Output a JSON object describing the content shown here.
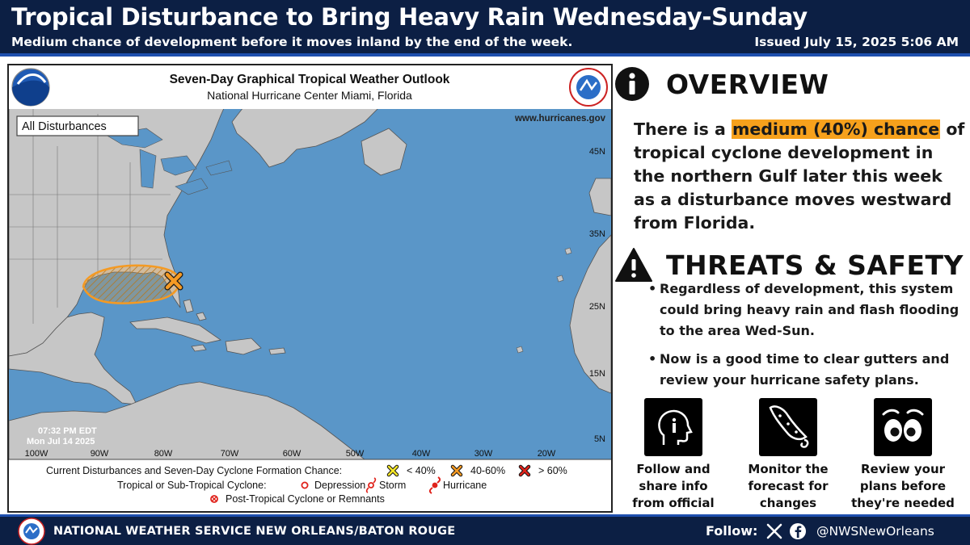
{
  "header": {
    "title": "Tropical Disturbance to Bring Heavy Rain Wednesday-Sunday",
    "subtitle": "Medium chance of development before it moves inland by the end of the week.",
    "issued": "Issued July 15, 2025 5:06 AM"
  },
  "map": {
    "title": "Seven-Day Graphical Tropical Weather Outlook",
    "subtitle": "National Hurricane Center  Miami, Florida",
    "website": "www.hurricanes.gov",
    "filter_label": "All Disturbances",
    "timestamp_time": "07:32 PM EDT",
    "timestamp_date": "Mon Jul 14 2025",
    "lat_labels": [
      "45N",
      "35N",
      "25N",
      "15N",
      "5N"
    ],
    "lon_labels": [
      "100W",
      "90W",
      "80W",
      "70W",
      "60W",
      "50W",
      "40W",
      "30W",
      "20W"
    ],
    "legend": {
      "row1_label": "Current Disturbances and Seven-Day Cyclone Formation Chance:",
      "low": "< 40%",
      "medium": "40-60%",
      "high": "> 60%",
      "row2_label": "Tropical or Sub-Tropical Cyclone:",
      "depression": "Depression",
      "storm": "Storm",
      "hurricane": "Hurricane",
      "post_tropical": "Post-Tropical Cyclone or Remnants"
    },
    "colors": {
      "ocean": "#5a96c8",
      "land": "#c6c6c6",
      "low": "#f5e627",
      "medium": "#f59a23",
      "high": "#e0221b"
    }
  },
  "overview": {
    "heading": "OVERVIEW",
    "text_before": "There is a ",
    "highlight": "medium (40%) chance",
    "text_after": " of tropical cyclone development in the northern Gulf later this week as a disturbance moves westward from Florida."
  },
  "threats": {
    "heading": "THREATS & SAFETY",
    "bullets": [
      "Regardless of development, this system could bring heavy rain and flash flooding to the area Wed-Sun.",
      "Now is a good time to clear gutters and review your hurricane safety plans."
    ]
  },
  "tiles": [
    {
      "icon": "head-info-icon",
      "label": "Follow and share info from official sources"
    },
    {
      "icon": "forecast-cone-icon",
      "label": "Monitor the forecast for changes"
    },
    {
      "icon": "eyes-icon",
      "label": "Review your plans before they're needed"
    }
  ],
  "footer": {
    "office": "NATIONAL WEATHER SERVICE NEW ORLEANS/BATON ROUGE",
    "follow_label": "Follow:",
    "handle": "@NWSNewOrleans"
  }
}
